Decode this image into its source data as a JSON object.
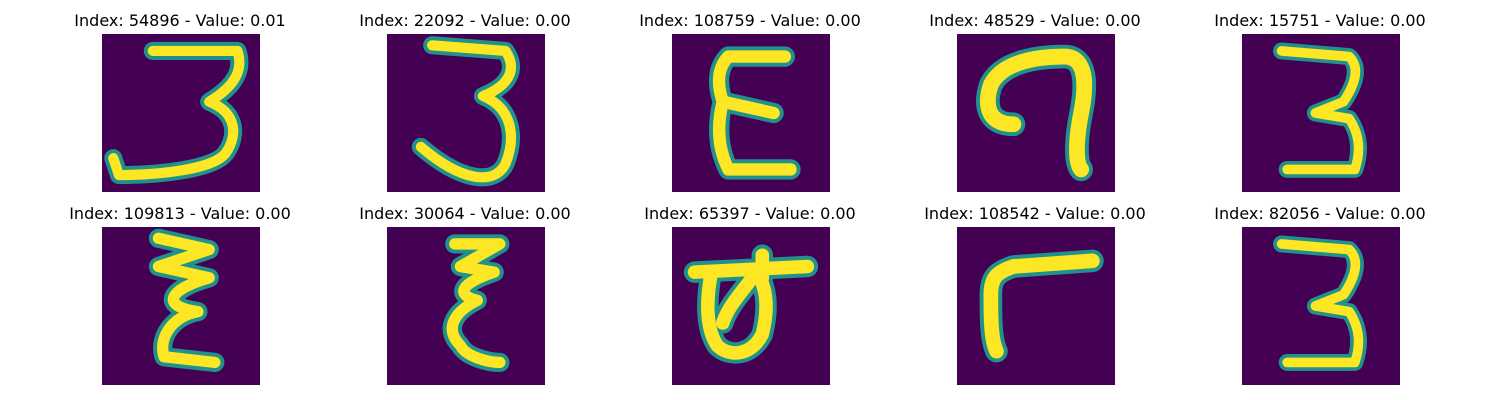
{
  "colors": {
    "background": "#440154",
    "ink_edge": "#21918c",
    "ink_mid": "#5ec962",
    "ink_core": "#fde725"
  },
  "panels": [
    {
      "title": "Index: 54896 - Value: 0.01",
      "glyph": "three-wide"
    },
    {
      "title": "Index: 22092 - Value: 0.00",
      "glyph": "three-wide"
    },
    {
      "title": "Index: 108759 - Value: 0.00",
      "glyph": "epsilon"
    },
    {
      "title": "Index: 48529 - Value: 0.00",
      "glyph": "hook"
    },
    {
      "title": "Index: 15751 - Value: 0.00",
      "glyph": "three"
    },
    {
      "title": "Index: 109813 - Value: 0.00",
      "glyph": "zigzag"
    },
    {
      "title": "Index: 30064 - Value: 0.00",
      "glyph": "zigzag"
    },
    {
      "title": "Index: 65397 - Value: 0.00",
      "glyph": "loop"
    },
    {
      "title": "Index: 108542 - Value: 0.00",
      "glyph": "gamma"
    },
    {
      "title": "Index: 82056 - Value: 0.00",
      "glyph": "three"
    }
  ]
}
